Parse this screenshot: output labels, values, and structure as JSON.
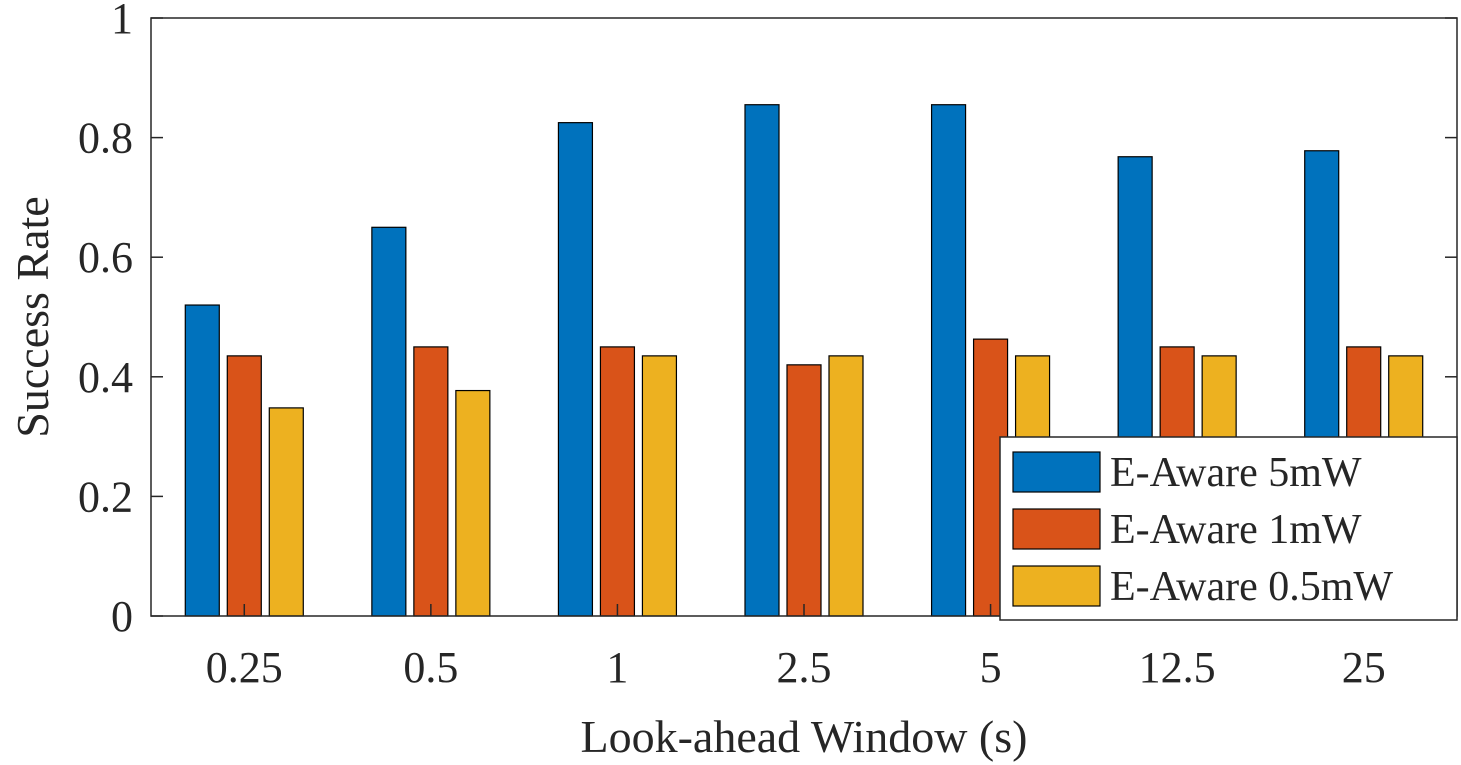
{
  "chart_data": {
    "type": "bar",
    "title": "",
    "xlabel": "Look-ahead Window (s)",
    "ylabel": "Success Rate",
    "ylim": [
      0,
      1
    ],
    "yticks": [
      "0",
      "0.2",
      "0.4",
      "0.6",
      "0.8",
      "1"
    ],
    "categories": [
      "0.25",
      "0.5",
      "1",
      "2.5",
      "5",
      "12.5",
      "25"
    ],
    "series": [
      {
        "name": "E-Aware 5mW",
        "color": "#0072BD",
        "values": [
          0.52,
          0.65,
          0.825,
          0.855,
          0.855,
          0.768,
          0.778
        ]
      },
      {
        "name": "E-Aware 1mW",
        "color": "#D95319",
        "values": [
          0.435,
          0.45,
          0.45,
          0.42,
          0.463,
          0.45,
          0.45
        ]
      },
      {
        "name": "E-Aware 0.5mW",
        "color": "#EDB120",
        "values": [
          0.348,
          0.377,
          0.435,
          0.435,
          0.435,
          0.435,
          0.435
        ]
      }
    ],
    "grid": false,
    "legend_position": "bottom-right"
  }
}
